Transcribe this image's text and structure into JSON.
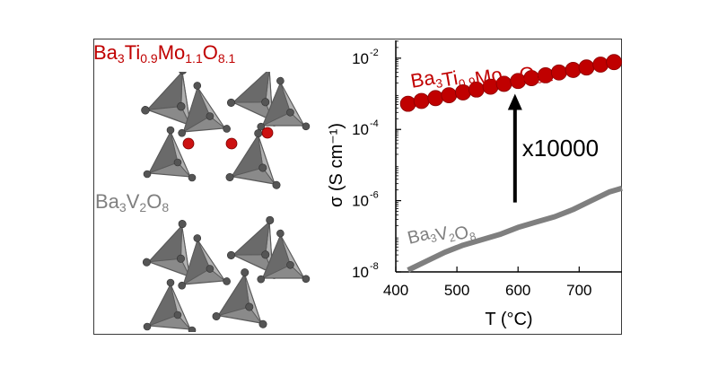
{
  "figure": {
    "structures": [
      {
        "name_base": "Ba",
        "parts": [
          [
            "Ba",
            "3"
          ],
          [
            "Ti",
            "0.9"
          ],
          [
            "Mo",
            "1.1"
          ],
          [
            "O",
            "8.1"
          ]
        ],
        "color": "#c00000"
      },
      {
        "name_base": "Ba",
        "parts": [
          [
            "Ba",
            "3"
          ],
          [
            "V",
            "2"
          ],
          [
            "O",
            "8"
          ]
        ],
        "color": "#7f7f7f"
      }
    ],
    "colors": {
      "high": "#c00000",
      "low": "#7f7f7f",
      "arrow": "#000000",
      "tetrahedron": "#6e6e6e",
      "atom_o": "#555555",
      "atom_mo": "#cc1111"
    }
  },
  "chart_data": {
    "type": "line",
    "xlabel": "T (°C)",
    "ylabel": "σ (S cm⁻¹)",
    "xlim": [
      400,
      770
    ],
    "ylim_log10": [
      -8,
      -1.5
    ],
    "yscale": "log",
    "xticks": [
      "400",
      "500",
      "600",
      "700"
    ],
    "xtick_values": [
      400,
      500,
      600,
      700
    ],
    "yticks": [
      {
        "base": "10",
        "exp": "-8",
        "value": -8
      },
      {
        "base": "10",
        "exp": "-6",
        "value": -6
      },
      {
        "base": "10",
        "exp": "-4",
        "value": -4
      },
      {
        "base": "10",
        "exp": "-2",
        "value": -2
      }
    ],
    "series": [
      {
        "name_parts": [
          [
            "Ba",
            "3"
          ],
          [
            "Ti",
            "0.9"
          ],
          [
            "Mo",
            "1.1"
          ],
          [
            "O",
            "8.1"
          ]
        ],
        "style": "markers",
        "color": "#c00000",
        "x": [
          420,
          442,
          465,
          487,
          510,
          532,
          555,
          577,
          600,
          622,
          645,
          667,
          690,
          712,
          735,
          757
        ],
        "log_y": [
          -3.28,
          -3.2,
          -3.12,
          -3.04,
          -2.96,
          -2.88,
          -2.8,
          -2.72,
          -2.64,
          -2.56,
          -2.48,
          -2.4,
          -2.33,
          -2.26,
          -2.18,
          -2.11
        ]
      },
      {
        "name_parts": [
          [
            "Ba",
            "3"
          ],
          [
            "V",
            "2"
          ],
          [
            "O",
            "8"
          ]
        ],
        "style": "line",
        "color": "#7f7f7f",
        "x": [
          420,
          450,
          480,
          510,
          540,
          570,
          600,
          630,
          660,
          690,
          720,
          750,
          770
        ],
        "log_y": [
          -7.95,
          -7.7,
          -7.45,
          -7.25,
          -7.1,
          -6.95,
          -6.75,
          -6.6,
          -6.45,
          -6.25,
          -6.0,
          -5.75,
          -5.65
        ]
      }
    ],
    "annotation": {
      "text": "x10000",
      "arrow_x": 595,
      "arrow_from_log_y": -6.05,
      "arrow_to_log_y": -3.05
    },
    "labels": {
      "high_label_parts": [
        [
          "Ba",
          "3"
        ],
        [
          "Ti",
          "0.9"
        ],
        [
          "Mo",
          "1.1"
        ],
        [
          "O",
          "8.1"
        ]
      ],
      "low_label_parts": [
        [
          "Ba",
          "3"
        ],
        [
          "V",
          "2"
        ],
        [
          "O",
          "8"
        ]
      ]
    }
  }
}
